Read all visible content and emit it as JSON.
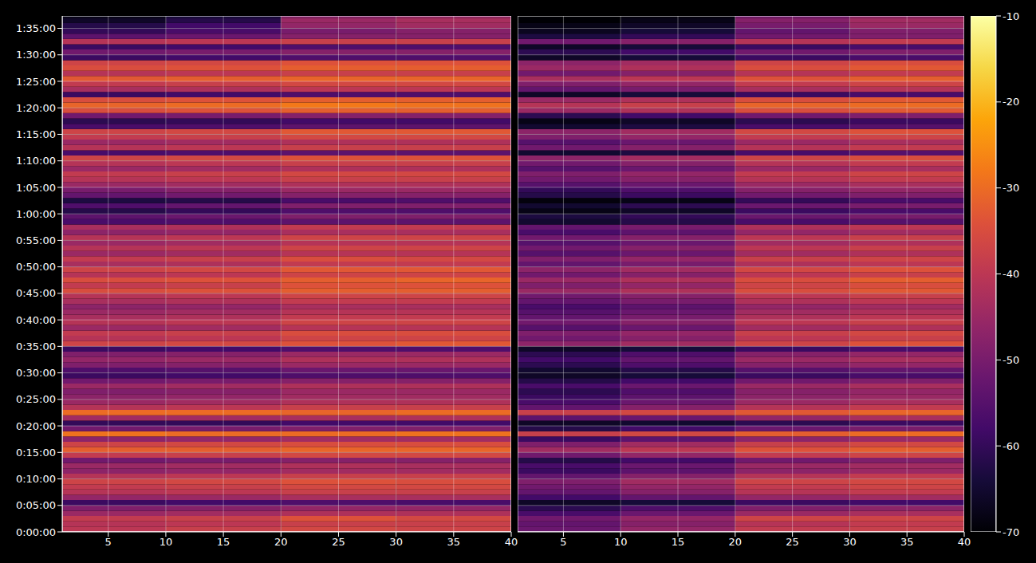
{
  "chart_data": [
    {
      "type": "heatmap",
      "color": "inferno",
      "grid": true,
      "xlim": [
        1,
        40
      ],
      "xticks": [
        5,
        10,
        15,
        20,
        25,
        30,
        35,
        40
      ],
      "ylim": [
        0,
        5840
      ],
      "yticks": [
        {
          "value": 0,
          "label": "0:00:00"
        },
        {
          "value": 300,
          "label": "0:05:00"
        },
        {
          "value": 600,
          "label": "0:10:00"
        },
        {
          "value": 900,
          "label": "0:15:00"
        },
        {
          "value": 1200,
          "label": "0:20:00"
        },
        {
          "value": 1500,
          "label": "0:25:00"
        },
        {
          "value": 1800,
          "label": "0:30:00"
        },
        {
          "value": 2100,
          "label": "0:35:00"
        },
        {
          "value": 2400,
          "label": "0:40:00"
        },
        {
          "value": 2700,
          "label": "0:45:00"
        },
        {
          "value": 3000,
          "label": "0:50:00"
        },
        {
          "value": 3300,
          "label": "0:55:00"
        },
        {
          "value": 3600,
          "label": "1:00:00"
        },
        {
          "value": 3900,
          "label": "1:05:00"
        },
        {
          "value": 4200,
          "label": "1:10:00"
        },
        {
          "value": 4500,
          "label": "1:15:00"
        },
        {
          "value": 4800,
          "label": "1:20:00"
        },
        {
          "value": 5100,
          "label": "1:25:00"
        },
        {
          "value": 5400,
          "label": "1:30:00"
        },
        {
          "value": 5700,
          "label": "1:35:00"
        }
      ],
      "x_edges": [
        1,
        10,
        20,
        30,
        40
      ],
      "y_step": 60,
      "cells": [
        [
          -40,
          -38,
          -36,
          -37
        ],
        [
          -41,
          -40,
          -38,
          -38
        ],
        [
          -39,
          -38,
          -34,
          -36
        ],
        [
          -45,
          -44,
          -42,
          -42
        ],
        [
          -49,
          -48,
          -46,
          -46
        ],
        [
          -59,
          -58,
          -56,
          -57
        ],
        [
          -46,
          -45,
          -43,
          -43
        ],
        [
          -41,
          -40,
          -38,
          -38
        ],
        [
          -39,
          -38,
          -36,
          -36
        ],
        [
          -37,
          -36,
          -34,
          -35
        ],
        [
          -41,
          -40,
          -38,
          -38
        ],
        [
          -47,
          -46,
          -44,
          -44
        ],
        [
          -45,
          -44,
          -42,
          -43
        ],
        [
          -51,
          -50,
          -48,
          -48
        ],
        [
          -39,
          -38,
          -36,
          -36
        ],
        [
          -32,
          -32,
          -31,
          -31
        ],
        [
          -37,
          -36,
          -35,
          -35
        ],
        [
          -47,
          -46,
          -44,
          -44
        ],
        [
          -29,
          -30,
          -30,
          -29
        ],
        [
          -51,
          -50,
          -49,
          -49
        ],
        [
          -60,
          -60,
          -58,
          -58
        ],
        [
          -44,
          -44,
          -43,
          -42
        ],
        [
          -30,
          -30,
          -31,
          -30
        ],
        [
          -41,
          -40,
          -38,
          -38
        ],
        [
          -45,
          -44,
          -42,
          -42
        ],
        [
          -47,
          -46,
          -44,
          -44
        ],
        [
          -49,
          -48,
          -45,
          -45
        ],
        [
          -45,
          -44,
          -42,
          -42
        ],
        [
          -51,
          -50,
          -48,
          -48
        ],
        [
          -59,
          -58,
          -56,
          -56
        ],
        [
          -56,
          -55,
          -52,
          -52
        ],
        [
          -49,
          -48,
          -45,
          -45
        ],
        [
          -46,
          -45,
          -42,
          -42
        ],
        [
          -49,
          -48,
          -45,
          -45
        ],
        [
          -59,
          -58,
          -56,
          -56
        ],
        [
          -37,
          -36,
          -34,
          -33
        ],
        [
          -41,
          -40,
          -37,
          -37
        ],
        [
          -39,
          -38,
          -35,
          -35
        ],
        [
          -45,
          -44,
          -41,
          -41
        ],
        [
          -41,
          -40,
          -37,
          -37
        ],
        [
          -43,
          -42,
          -39,
          -39
        ],
        [
          -45,
          -44,
          -41,
          -41
        ],
        [
          -47,
          -46,
          -43,
          -43
        ],
        [
          -43,
          -42,
          -39,
          -39
        ],
        [
          -41,
          -40,
          -37,
          -37
        ],
        [
          -35,
          -34,
          -32,
          -32
        ],
        [
          -39,
          -38,
          -34,
          -34
        ],
        [
          -35,
          -34,
          -32,
          -31
        ],
        [
          -41,
          -40,
          -37,
          -37
        ],
        [
          -37,
          -36,
          -33,
          -33
        ],
        [
          -43,
          -42,
          -39,
          -39
        ],
        [
          -39,
          -38,
          -35,
          -36
        ],
        [
          -45,
          -44,
          -41,
          -41
        ],
        [
          -41,
          -40,
          -37,
          -37
        ],
        [
          -45,
          -44,
          -41,
          -41
        ],
        [
          -41,
          -40,
          -37,
          -37
        ],
        [
          -47,
          -46,
          -43,
          -43
        ],
        [
          -43,
          -42,
          -39,
          -39
        ],
        [
          -57,
          -56,
          -54,
          -54
        ],
        [
          -54,
          -52,
          -49,
          -49
        ],
        [
          -62,
          -60,
          -56,
          -56
        ],
        [
          -56,
          -53,
          -49,
          -49
        ],
        [
          -63,
          -62,
          -57,
          -56
        ],
        [
          -53,
          -51,
          -48,
          -48
        ],
        [
          -50,
          -48,
          -45,
          -45
        ],
        [
          -45,
          -44,
          -42,
          -42
        ],
        [
          -41,
          -40,
          -38,
          -38
        ],
        [
          -39,
          -38,
          -36,
          -36
        ],
        [
          -45,
          -44,
          -42,
          -42
        ],
        [
          -41,
          -40,
          -38,
          -38
        ],
        [
          -37,
          -36,
          -34,
          -34
        ],
        [
          -57,
          -56,
          -54,
          -54
        ],
        [
          -41,
          -40,
          -38,
          -38
        ],
        [
          -45,
          -44,
          -42,
          -42
        ],
        [
          -39,
          -38,
          -36,
          -36
        ],
        [
          -37,
          -36,
          -33,
          -33
        ],
        [
          -57,
          -56,
          -54,
          -54
        ],
        [
          -61,
          -60,
          -58,
          -58
        ],
        [
          -51,
          -50,
          -48,
          -48
        ],
        [
          -35,
          -34,
          -32,
          -32
        ],
        [
          -31,
          -30,
          -28,
          -29
        ],
        [
          -35,
          -34,
          -32,
          -32
        ],
        [
          -59,
          -58,
          -56,
          -56
        ],
        [
          -43,
          -42,
          -40,
          -40
        ],
        [
          -39,
          -38,
          -36,
          -36
        ],
        [
          -33,
          -32,
          -31,
          -31
        ],
        [
          -41,
          -40,
          -38,
          -38
        ],
        [
          -35,
          -34,
          -32,
          -32
        ],
        [
          -37,
          -36,
          -34,
          -34
        ],
        [
          -59,
          -58,
          -56,
          -56
        ],
        [
          -51,
          -50,
          -48,
          -48
        ],
        [
          -59,
          -58,
          -56,
          -56
        ],
        [
          -41,
          -40,
          -38,
          -38
        ],
        [
          -54,
          -52,
          -48,
          -48
        ],
        [
          -60,
          -57,
          -50,
          -48
        ],
        [
          -62,
          -58,
          -46,
          -44
        ],
        [
          -66,
          -62,
          -45,
          -43
        ],
        [
          -68,
          -64,
          -48,
          -46
        ]
      ]
    },
    {
      "type": "heatmap",
      "color": "inferno",
      "grid": true,
      "tick_labels": "x",
      "xlim": [
        1,
        40
      ],
      "xticks": [
        5,
        10,
        15,
        20,
        25,
        30,
        35,
        40
      ],
      "ylim": [
        0,
        5840
      ],
      "yticks": [
        0,
        300,
        600,
        900,
        1200,
        1500,
        1800,
        2100,
        2400,
        2700,
        3000,
        3300,
        3600,
        3900,
        4200,
        4500,
        4800,
        5100,
        5400,
        5700
      ],
      "x_edges": [
        1,
        10,
        20,
        30,
        40
      ],
      "y_step": 60,
      "colorbar": {
        "range": [
          -70,
          -10
        ],
        "ticks": [
          -70,
          -60,
          -50,
          -40,
          -30,
          -20,
          -10
        ]
      },
      "cells": [
        [
          -52,
          -46,
          -39,
          -38
        ],
        [
          -53,
          -48,
          -41,
          -39
        ],
        [
          -51,
          -46,
          -37,
          -37
        ],
        [
          -57,
          -52,
          -45,
          -43
        ],
        [
          -61,
          -56,
          -49,
          -47
        ],
        [
          -66,
          -64,
          -59,
          -58
        ],
        [
          -58,
          -53,
          -46,
          -44
        ],
        [
          -53,
          -48,
          -41,
          -39
        ],
        [
          -51,
          -46,
          -39,
          -37
        ],
        [
          -49,
          -44,
          -37,
          -36
        ],
        [
          -53,
          -48,
          -41,
          -39
        ],
        [
          -59,
          -54,
          -47,
          -45
        ],
        [
          -57,
          -52,
          -45,
          -44
        ],
        [
          -62,
          -58,
          -51,
          -49
        ],
        [
          -51,
          -46,
          -39,
          -37
        ],
        [
          -44,
          -40,
          -34,
          -32
        ],
        [
          -49,
          -44,
          -38,
          -36
        ],
        [
          -59,
          -54,
          -47,
          -45
        ],
        [
          -38,
          -36,
          -32,
          -30
        ],
        [
          -62,
          -58,
          -52,
          -50
        ],
        [
          -66,
          -65,
          -61,
          -59
        ],
        [
          -54,
          -52,
          -46,
          -43
        ],
        [
          -38,
          -36,
          -33,
          -31
        ],
        [
          -53,
          -48,
          -41,
          -39
        ],
        [
          -57,
          -52,
          -45,
          -43
        ],
        [
          -59,
          -54,
          -47,
          -45
        ],
        [
          -61,
          -56,
          -48,
          -46
        ],
        [
          -57,
          -52,
          -45,
          -43
        ],
        [
          -62,
          -58,
          -51,
          -49
        ],
        [
          -66,
          -64,
          -59,
          -57
        ],
        [
          -65,
          -62,
          -55,
          -53
        ],
        [
          -61,
          -56,
          -48,
          -46
        ],
        [
          -58,
          -53,
          -45,
          -43
        ],
        [
          -61,
          -56,
          -48,
          -46
        ],
        [
          -66,
          -64,
          -59,
          -57
        ],
        [
          -47,
          -44,
          -37,
          -34
        ],
        [
          -51,
          -48,
          -40,
          -38
        ],
        [
          -49,
          -46,
          -38,
          -36
        ],
        [
          -55,
          -52,
          -44,
          -42
        ],
        [
          -51,
          -48,
          -40,
          -38
        ],
        [
          -53,
          -50,
          -42,
          -40
        ],
        [
          -55,
          -52,
          -44,
          -42
        ],
        [
          -57,
          -54,
          -46,
          -44
        ],
        [
          -53,
          -50,
          -42,
          -40
        ],
        [
          -51,
          -48,
          -40,
          -38
        ],
        [
          -45,
          -42,
          -35,
          -33
        ],
        [
          -49,
          -46,
          -37,
          -35
        ],
        [
          -45,
          -42,
          -35,
          -32
        ],
        [
          -51,
          -48,
          -40,
          -38
        ],
        [
          -47,
          -44,
          -36,
          -34
        ],
        [
          -53,
          -50,
          -42,
          -40
        ],
        [
          -49,
          -46,
          -38,
          -37
        ],
        [
          -55,
          -52,
          -44,
          -42
        ],
        [
          -51,
          -48,
          -40,
          -38
        ],
        [
          -55,
          -52,
          -44,
          -42
        ],
        [
          -51,
          -48,
          -40,
          -38
        ],
        [
          -57,
          -54,
          -46,
          -44
        ],
        [
          -53,
          -50,
          -42,
          -40
        ],
        [
          -65,
          -62,
          -57,
          -55
        ],
        [
          -63,
          -60,
          -52,
          -50
        ],
        [
          -68,
          -66,
          -59,
          -57
        ],
        [
          -65,
          -61,
          -52,
          -50
        ],
        [
          -69,
          -68,
          -60,
          -57
        ],
        [
          -62,
          -59,
          -51,
          -49
        ],
        [
          -60,
          -56,
          -48,
          -46
        ],
        [
          -55,
          -52,
          -45,
          -43
        ],
        [
          -51,
          -48,
          -41,
          -39
        ],
        [
          -49,
          -46,
          -39,
          -37
        ],
        [
          -55,
          -52,
          -45,
          -43
        ],
        [
          -51,
          -48,
          -41,
          -39
        ],
        [
          -47,
          -44,
          -37,
          -35
        ],
        [
          -65,
          -63,
          -57,
          -55
        ],
        [
          -51,
          -48,
          -41,
          -39
        ],
        [
          -55,
          -52,
          -45,
          -43
        ],
        [
          -49,
          -46,
          -39,
          -37
        ],
        [
          -47,
          -44,
          -36,
          -34
        ],
        [
          -65,
          -63,
          -57,
          -55
        ],
        [
          -68,
          -66,
          -61,
          -59
        ],
        [
          -61,
          -58,
          -51,
          -49
        ],
        [
          -45,
          -42,
          -35,
          -33
        ],
        [
          -41,
          -38,
          -31,
          -30
        ],
        [
          -45,
          -42,
          -35,
          -33
        ],
        [
          -66,
          -64,
          -59,
          -57
        ],
        [
          -53,
          -50,
          -43,
          -41
        ],
        [
          -49,
          -46,
          -39,
          -37
        ],
        [
          -43,
          -40,
          -34,
          -32
        ],
        [
          -51,
          -48,
          -41,
          -39
        ],
        [
          -45,
          -42,
          -35,
          -33
        ],
        [
          -47,
          -44,
          -37,
          -35
        ],
        [
          -66,
          -64,
          -59,
          -57
        ],
        [
          -61,
          -58,
          -51,
          -49
        ],
        [
          -66,
          -64,
          -59,
          -57
        ],
        [
          -51,
          -48,
          -41,
          -39
        ],
        [
          -63,
          -60,
          -51,
          -49
        ],
        [
          -67,
          -64,
          -53,
          -49
        ],
        [
          -68,
          -66,
          -50,
          -45
        ],
        [
          -70,
          -68,
          -48,
          -44
        ],
        [
          -70,
          -69,
          -51,
          -47
        ]
      ]
    }
  ]
}
